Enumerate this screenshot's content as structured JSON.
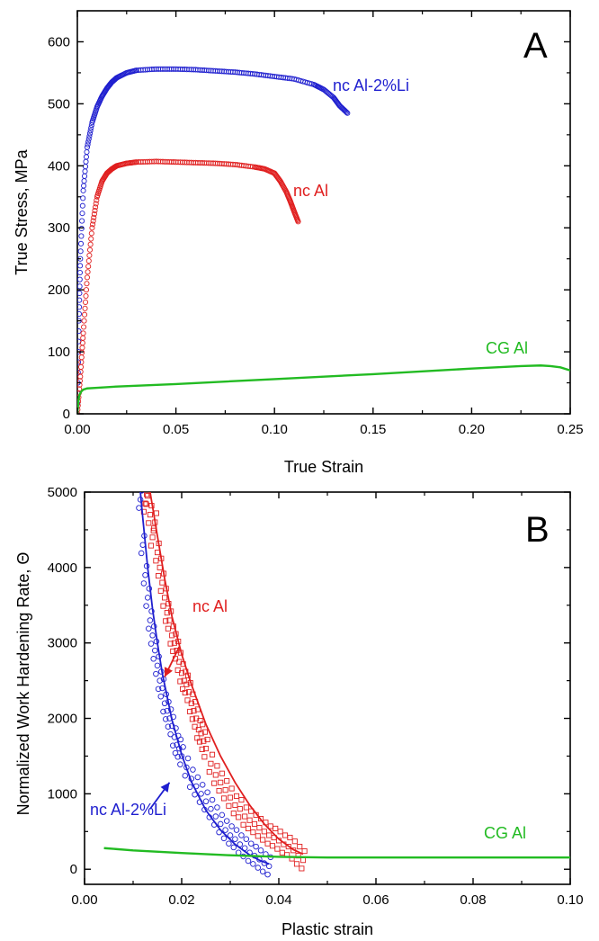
{
  "chart_data": [
    {
      "panel_label": "A",
      "type": "line",
      "xlabel": "True Strain",
      "ylabel": "True Stress, MPa",
      "xlim": [
        0,
        0.25
      ],
      "ylim": [
        0,
        650
      ],
      "x_ticks": [
        0.0,
        0.05,
        0.1,
        0.15,
        0.2,
        0.25
      ],
      "x_tick_labels": [
        "0.00",
        "0.05",
        "0.10",
        "0.15",
        "0.20",
        "0.25"
      ],
      "y_ticks": [
        0,
        100,
        200,
        300,
        400,
        500,
        600
      ],
      "y_tick_labels": [
        "0",
        "100",
        "200",
        "300",
        "400",
        "500",
        "600"
      ],
      "grid": false,
      "series": [
        {
          "name": "nc Al-2%Li",
          "color": "#1f1fcf",
          "style": "circle-markers",
          "x": [
            0.0,
            0.0008,
            0.0015,
            0.003,
            0.005,
            0.0075,
            0.01,
            0.0125,
            0.015,
            0.0175,
            0.02,
            0.025,
            0.03,
            0.04,
            0.05,
            0.06,
            0.07,
            0.08,
            0.09,
            0.1,
            0.11,
            0.12,
            0.125,
            0.13,
            0.133,
            0.137
          ],
          "y": [
            0,
            150,
            250,
            360,
            430,
            470,
            495,
            512,
            525,
            535,
            542,
            550,
            554,
            556,
            556,
            555,
            553,
            551,
            548,
            544,
            540,
            531,
            523,
            510,
            497,
            485
          ]
        },
        {
          "name": "nc Al",
          "color": "#e01f1f",
          "style": "circle-markers",
          "x": [
            0.0,
            0.0015,
            0.003,
            0.005,
            0.0075,
            0.01,
            0.0125,
            0.015,
            0.0175,
            0.02,
            0.025,
            0.03,
            0.04,
            0.05,
            0.06,
            0.07,
            0.08,
            0.09,
            0.095,
            0.1,
            0.103,
            0.106,
            0.108,
            0.11,
            0.112
          ],
          "y": [
            0,
            60,
            130,
            220,
            300,
            350,
            375,
            388,
            395,
            400,
            404,
            406,
            407,
            406,
            405,
            404,
            402,
            398,
            395,
            388,
            375,
            358,
            343,
            326,
            310
          ]
        },
        {
          "name": "CG Al",
          "color": "#22bb22",
          "style": "line",
          "x": [
            0.0,
            0.0005,
            0.001,
            0.002,
            0.003,
            0.005,
            0.01,
            0.02,
            0.05,
            0.1,
            0.15,
            0.2,
            0.225,
            0.235,
            0.24,
            0.245,
            0.25
          ],
          "y": [
            0,
            20,
            30,
            36,
            39,
            41,
            42,
            44,
            48,
            56,
            64,
            73,
            77,
            78,
            77,
            75,
            70
          ]
        }
      ]
    },
    {
      "panel_label": "B",
      "type": "scatter",
      "xlabel": "Plastic strain",
      "ylabel": "Normalized Work Hardening Rate, Θ",
      "xlim": [
        0,
        0.1
      ],
      "ylim": [
        -200,
        5000
      ],
      "x_ticks": [
        0.0,
        0.02,
        0.04,
        0.06,
        0.08,
        0.1
      ],
      "x_tick_labels": [
        "0.00",
        "0.02",
        "0.04",
        "0.06",
        "0.08",
        "0.10"
      ],
      "y_ticks": [
        0,
        1000,
        2000,
        3000,
        4000,
        5000
      ],
      "y_tick_labels": [
        "0",
        "1000",
        "2000",
        "3000",
        "4000",
        "5000"
      ],
      "grid": false,
      "series": [
        {
          "name": "nc Al",
          "color": "#e01f1f",
          "style": "square-markers-with-fit",
          "fit_x": [
            0.0135,
            0.015,
            0.0165,
            0.018,
            0.02,
            0.022,
            0.025,
            0.028,
            0.031,
            0.034,
            0.037,
            0.04,
            0.043,
            0.045
          ],
          "fit_y": [
            5000,
            4420,
            3850,
            3350,
            2850,
            2450,
            1920,
            1500,
            1150,
            850,
            600,
            400,
            260,
            200
          ],
          "points_x": [
            0.0125,
            0.013,
            0.0135,
            0.014,
            0.0145,
            0.015,
            0.0155,
            0.016,
            0.0165,
            0.017,
            0.0175,
            0.018,
            0.0185,
            0.019,
            0.0195,
            0.02,
            0.0205,
            0.021,
            0.0215,
            0.022,
            0.0225,
            0.023,
            0.0235,
            0.024,
            0.0245,
            0.025,
            0.026,
            0.027,
            0.028,
            0.029,
            0.03,
            0.031,
            0.032,
            0.033,
            0.034,
            0.035,
            0.036,
            0.037,
            0.038,
            0.039,
            0.04,
            0.041,
            0.042,
            0.043,
            0.044,
            0.045
          ],
          "points_y": [
            4850,
            4950,
            4700,
            4400,
            4600,
            4200,
            4000,
            3800,
            3600,
            3400,
            3300,
            3100,
            3000,
            2900,
            2750,
            2600,
            2500,
            2450,
            2350,
            2200,
            2100,
            2000,
            1850,
            1800,
            1700,
            1600,
            1400,
            1250,
            1150,
            1050,
            950,
            850,
            800,
            700,
            650,
            600,
            550,
            500,
            450,
            420,
            380,
            330,
            300,
            250,
            180,
            120
          ]
        },
        {
          "name": "nc Al-2%Li",
          "color": "#1f1fcf",
          "style": "circle-markers-with-fit",
          "fit_x": [
            0.0115,
            0.012,
            0.013,
            0.014,
            0.015,
            0.016,
            0.018,
            0.02,
            0.022,
            0.025,
            0.028,
            0.031,
            0.034,
            0.036,
            0.038
          ],
          "fit_y": [
            5000,
            4650,
            4000,
            3450,
            3000,
            2600,
            1980,
            1520,
            1160,
            780,
            520,
            330,
            190,
            120,
            70
          ],
          "points_x": [
            0.0115,
            0.012,
            0.0125,
            0.013,
            0.0135,
            0.014,
            0.0145,
            0.015,
            0.0155,
            0.016,
            0.0165,
            0.017,
            0.0175,
            0.018,
            0.0185,
            0.019,
            0.0195,
            0.02,
            0.021,
            0.022,
            0.023,
            0.024,
            0.025,
            0.026,
            0.027,
            0.028,
            0.029,
            0.03,
            0.031,
            0.032,
            0.033,
            0.034,
            0.035,
            0.036,
            0.037,
            0.038
          ],
          "points_y": [
            4900,
            4300,
            3900,
            3600,
            3300,
            3100,
            2900,
            2700,
            2500,
            2400,
            2200,
            2100,
            2000,
            1900,
            1750,
            1650,
            1600,
            1500,
            1350,
            1200,
            1100,
            1000,
            900,
            800,
            700,
            600,
            520,
            450,
            400,
            330,
            280,
            220,
            180,
            130,
            80,
            40
          ]
        },
        {
          "name": "CG Al",
          "color": "#22bb22",
          "style": "line",
          "fit_x": [
            0.004,
            0.01,
            0.02,
            0.03,
            0.04,
            0.05,
            0.06,
            0.08,
            0.1
          ],
          "fit_y": [
            280,
            250,
            215,
            185,
            165,
            155,
            155,
            155,
            155
          ]
        }
      ],
      "annotations": [
        {
          "text": "nc Al",
          "arrow_from": [
            0.0195,
            2950
          ],
          "arrow_to": [
            0.0165,
            2550
          ]
        },
        {
          "text": "nc Al-2%Li",
          "arrow_from": [
            0.0135,
            800
          ],
          "arrow_to": [
            0.0175,
            1150
          ]
        }
      ]
    }
  ]
}
